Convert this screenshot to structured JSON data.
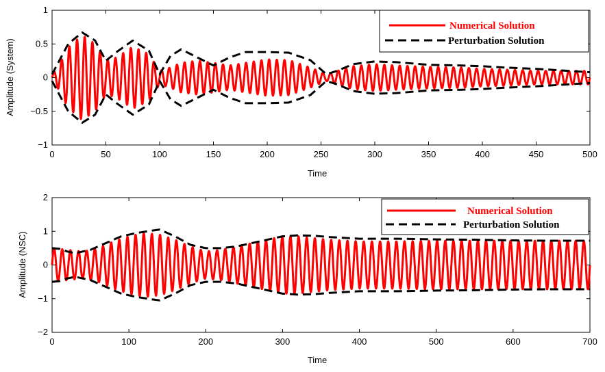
{
  "chart_data": [
    {
      "type": "line",
      "xlabel": "Time",
      "ylabel": "Amplitude (System)",
      "xlim": [
        0,
        500
      ],
      "ylim": [
        -1,
        1
      ],
      "xticks": [
        "0",
        "50",
        "100",
        "150",
        "200",
        "250",
        "300",
        "350",
        "400",
        "450",
        "500"
      ],
      "yticks": [
        "1",
        "0.5",
        "0",
        "−0.5",
        "−1"
      ],
      "legend": {
        "position": "top-right",
        "entries": [
          "Numerical Solution",
          "Perturbation Solution"
        ]
      },
      "series": [
        {
          "name": "Numerical Solution",
          "color": "#ff0000",
          "style": "solid",
          "description": "high-frequency oscillation within the envelope",
          "envelope_x": [
            0,
            5,
            15,
            28,
            40,
            50,
            60,
            75,
            90,
            100,
            110,
            120,
            135,
            150,
            165,
            180,
            200,
            220,
            240,
            255,
            265,
            280,
            300,
            320,
            350,
            380,
            400,
            420,
            450,
            480,
            500
          ],
          "envelope_y": [
            0.05,
            0.15,
            0.45,
            0.63,
            0.5,
            0.25,
            0.3,
            0.46,
            0.35,
            0.1,
            0.15,
            0.22,
            0.25,
            0.22,
            0.18,
            0.22,
            0.27,
            0.26,
            0.15,
            0.05,
            0.1,
            0.17,
            0.2,
            0.18,
            0.16,
            0.15,
            0.13,
            0.12,
            0.1,
            0.1,
            0.1
          ],
          "cycles": 70
        },
        {
          "name": "Perturbation Solution",
          "color": "#000000",
          "style": "dashed",
          "x": [
            0,
            5,
            15,
            28,
            40,
            50,
            60,
            75,
            90,
            100,
            110,
            120,
            135,
            150,
            165,
            180,
            200,
            220,
            240,
            255,
            265,
            280,
            300,
            320,
            350,
            380,
            400,
            420,
            450,
            480,
            500
          ],
          "y": [
            0.05,
            0.2,
            0.5,
            0.67,
            0.55,
            0.25,
            0.38,
            0.55,
            0.4,
            0.05,
            0.32,
            0.42,
            0.3,
            0.18,
            0.3,
            0.38,
            0.38,
            0.37,
            0.26,
            0.05,
            0.1,
            0.2,
            0.24,
            0.23,
            0.19,
            0.18,
            0.17,
            0.15,
            0.13,
            0.1,
            0.08
          ]
        }
      ]
    },
    {
      "type": "line",
      "xlabel": "Time",
      "ylabel": "Amplitude (NSC)",
      "xlim": [
        0,
        700
      ],
      "ylim": [
        -2,
        2
      ],
      "xticks": [
        "0",
        "100",
        "200",
        "300",
        "400",
        "500",
        "600",
        "700"
      ],
      "yticks": [
        "2",
        "1",
        "0",
        "−1",
        "−2"
      ],
      "legend": {
        "position": "top-right",
        "entries": [
          "Numerical Solution",
          "Perturbation Solution"
        ]
      },
      "series": [
        {
          "name": "Numerical Solution",
          "color": "#ff0000",
          "style": "solid",
          "description": "oscillation within the envelope",
          "envelope_x": [
            0,
            20,
            40,
            60,
            80,
            100,
            120,
            140,
            160,
            180,
            200,
            220,
            240,
            260,
            280,
            300,
            320,
            340,
            360,
            400,
            450,
            500,
            550,
            600,
            650,
            700
          ],
          "envelope_y": [
            0.5,
            0.45,
            0.4,
            0.5,
            0.7,
            0.85,
            0.95,
            0.9,
            0.75,
            0.55,
            0.4,
            0.45,
            0.55,
            0.65,
            0.75,
            0.85,
            0.85,
            0.8,
            0.75,
            0.7,
            0.7,
            0.72,
            0.72,
            0.72,
            0.72,
            0.72
          ],
          "cycles": 66
        },
        {
          "name": "Perturbation Solution",
          "color": "#000000",
          "style": "dashed",
          "x": [
            0,
            10,
            20,
            30,
            50,
            70,
            90,
            110,
            130,
            140,
            160,
            180,
            200,
            220,
            240,
            260,
            280,
            300,
            320,
            340,
            360,
            400,
            450,
            500,
            550,
            600,
            650,
            700
          ],
          "y": [
            0.5,
            0.48,
            0.4,
            0.35,
            0.45,
            0.65,
            0.85,
            0.95,
            1.02,
            1.05,
            0.85,
            0.6,
            0.5,
            0.5,
            0.55,
            0.65,
            0.75,
            0.85,
            0.88,
            0.87,
            0.83,
            0.78,
            0.78,
            0.76,
            0.75,
            0.73,
            0.72,
            0.72
          ]
        }
      ]
    }
  ]
}
